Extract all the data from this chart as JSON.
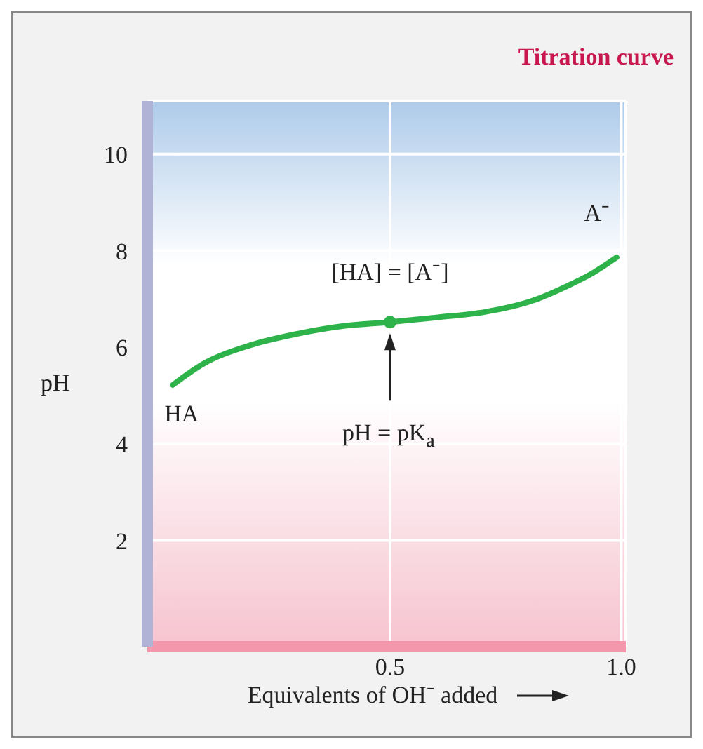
{
  "chart_data": {
    "type": "line",
    "title": "Titration curve",
    "xlabel": "Equivalents of OH⁻ added",
    "ylabel": "pH",
    "xlim": [
      -0.025,
      1.01
    ],
    "ylim": [
      -0.2,
      11.1
    ],
    "xticks": [
      0.5,
      {
        "value": 1,
        "label": "1.0"
      }
    ],
    "yticks": [
      2,
      4,
      6,
      8,
      10
    ],
    "grid": true,
    "series": [
      {
        "color": "#2db34a",
        "marker": "none",
        "x": [
          0.03,
          0.095,
          0.197,
          0.3,
          0.4,
          0.5,
          0.604,
          0.705,
          0.807,
          0.888,
          0.939,
          0.99
        ],
        "values": [
          5.22,
          5.65,
          6.04,
          6.28,
          6.44,
          6.52,
          6.62,
          6.73,
          6.96,
          7.29,
          7.54,
          7.86
        ]
      },
      {
        "type": "scatter",
        "color": "#2db34a",
        "marker": "circle",
        "x": [
          0.5
        ],
        "values": [
          6.52
        ]
      }
    ],
    "annotations": [
      {
        "text": "HA",
        "x": 0.03,
        "y": 5.22
      },
      {
        "text": "A⁻",
        "x": 0.99,
        "y": 7.86
      },
      {
        "text": "[HA] = [A⁻]",
        "x": 0.5,
        "y": 6.52
      },
      "pH = pK$_{a}$"
    ]
  }
}
